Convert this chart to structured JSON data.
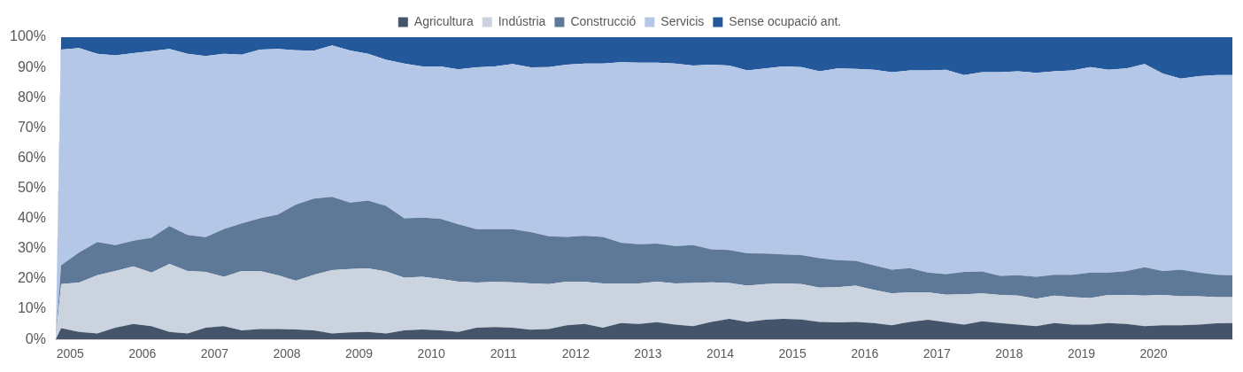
{
  "chart_data": {
    "type": "area",
    "stacked": true,
    "legend": "top",
    "x": [
      2005.3,
      2005.375,
      2005.625,
      2005.875,
      2006.125,
      2006.375,
      2006.625,
      2006.875,
      2007.125,
      2007.375,
      2007.625,
      2007.875,
      2008.125,
      2008.375,
      2008.625,
      2008.875,
      2009.125,
      2009.375,
      2009.625,
      2009.875,
      2010.125,
      2010.375,
      2010.625,
      2010.875,
      2011.125,
      2011.375,
      2011.625,
      2011.875,
      2012.125,
      2012.375,
      2012.625,
      2012.875,
      2013.125,
      2013.375,
      2013.625,
      2013.875,
      2014.125,
      2014.375,
      2014.625,
      2014.875,
      2015.125,
      2015.375,
      2015.625,
      2015.875,
      2016.125,
      2016.375,
      2016.625,
      2016.875,
      2017.125,
      2017.375,
      2017.625,
      2017.875,
      2018.125,
      2018.375,
      2018.625,
      2018.875,
      2019.125,
      2019.375,
      2019.625,
      2019.875,
      2020.125,
      2020.375,
      2020.625,
      2020.875,
      2021.125,
      2021.375,
      2021.59
    ],
    "xlim": [
      2005.3,
      2021.59
    ],
    "xticks": [
      {
        "value": 2005.5,
        "label": "2005"
      },
      {
        "value": 2006,
        "label": null
      },
      {
        "value": 2006.5,
        "label": "2006"
      },
      {
        "value": 2007,
        "label": null
      },
      {
        "value": 2007.5,
        "label": "2007"
      },
      {
        "value": 2008,
        "label": null
      },
      {
        "value": 2008.5,
        "label": "2008"
      },
      {
        "value": 2009,
        "label": null
      },
      {
        "value": 2009.5,
        "label": "2009"
      },
      {
        "value": 2010,
        "label": null
      },
      {
        "value": 2010.5,
        "label": "2010"
      },
      {
        "value": 2011,
        "label": null
      },
      {
        "value": 2011.5,
        "label": "2011"
      },
      {
        "value": 2012,
        "label": null
      },
      {
        "value": 2012.5,
        "label": "2012"
      },
      {
        "value": 2013,
        "label": null
      },
      {
        "value": 2013.5,
        "label": "2013"
      },
      {
        "value": 2014,
        "label": null
      },
      {
        "value": 2014.5,
        "label": "2014"
      },
      {
        "value": 2015,
        "label": null
      },
      {
        "value": 2015.5,
        "label": "2015"
      },
      {
        "value": 2016,
        "label": null
      },
      {
        "value": 2016.5,
        "label": "2016"
      },
      {
        "value": 2017,
        "label": null
      },
      {
        "value": 2017.5,
        "label": "2017"
      },
      {
        "value": 2018,
        "label": null
      },
      {
        "value": 2018.5,
        "label": "2018"
      },
      {
        "value": 2019,
        "label": null
      },
      {
        "value": 2019.5,
        "label": "2019"
      },
      {
        "value": 2020,
        "label": null
      },
      {
        "value": 2020.5,
        "label": "2020"
      },
      {
        "value": 2021,
        "label": null
      }
    ],
    "ylim": [
      0,
      100
    ],
    "yticks": [
      {
        "value": 0,
        "label": "0%"
      },
      {
        "value": 10,
        "label": "10%"
      },
      {
        "value": 20,
        "label": "20%"
      },
      {
        "value": 30,
        "label": "30%"
      },
      {
        "value": 40,
        "label": "40%"
      },
      {
        "value": 50,
        "label": "50%"
      },
      {
        "value": 60,
        "label": "60%"
      },
      {
        "value": 70,
        "label": "70%"
      },
      {
        "value": 80,
        "label": "80%"
      },
      {
        "value": 90,
        "label": "90%"
      },
      {
        "value": 100,
        "label": "100%"
      }
    ],
    "series": [
      {
        "name": "Agricultura",
        "color": "#44546a",
        "values": [
          0,
          3.7,
          2.5,
          2.0,
          3.9,
          5.1,
          4.4,
          2.5,
          2.0,
          3.9,
          4.4,
          3.0,
          3.4,
          3.4,
          3.3,
          3.0,
          2.0,
          2.3,
          2.5,
          2.0,
          3.0,
          3.3,
          3.0,
          2.5,
          3.9,
          4.1,
          3.9,
          3.2,
          3.4,
          4.7,
          5.1,
          3.9,
          5.4,
          5.1,
          5.7,
          4.9,
          4.4,
          5.8,
          6.8,
          5.8,
          6.5,
          6.8,
          6.6,
          5.8,
          5.6,
          5.8,
          5.4,
          4.7,
          5.8,
          6.5,
          5.7,
          4.9,
          6.0,
          5.4,
          4.9,
          4.4,
          5.4,
          4.9,
          4.9,
          5.4,
          5.1,
          4.4,
          4.7,
          4.7,
          4.9,
          5.3,
          5.4
        ]
      },
      {
        "name": "Indústria",
        "color": "#cbd3df",
        "values": [
          0,
          14.6,
          16.3,
          19.2,
          18.7,
          19.1,
          17.7,
          22.5,
          20.6,
          18.4,
          16.3,
          19.6,
          19.2,
          17.8,
          16.1,
          18.4,
          20.9,
          21.0,
          21.0,
          20.5,
          17.4,
          17.4,
          17.0,
          16.6,
          14.9,
          14.9,
          15.0,
          15.3,
          14.9,
          14.4,
          13.9,
          14.6,
          13.1,
          13.4,
          13.4,
          13.6,
          14.3,
          13.1,
          11.9,
          12.0,
          11.8,
          11.7,
          11.7,
          11.3,
          11.7,
          12.0,
          11.0,
          10.5,
          9.8,
          9.1,
          9.1,
          10.0,
          9.2,
          9.3,
          9.6,
          9.1,
          9.1,
          9.1,
          8.8,
          9.3,
          9.6,
          10.1,
          10.0,
          9.6,
          9.4,
          8.7,
          8.6
        ]
      },
      {
        "name": "Construcció",
        "color": "#5e7897",
        "values": [
          0,
          6.2,
          10.0,
          11.0,
          8.6,
          8.5,
          11.5,
          12.5,
          12.0,
          11.5,
          15.8,
          15.8,
          17.5,
          20.1,
          25.2,
          25.2,
          24.3,
          22.0,
          22.4,
          21.7,
          19.7,
          19.6,
          19.9,
          19.0,
          17.7,
          17.5,
          17.6,
          17.0,
          15.8,
          14.8,
          15.3,
          15.4,
          13.5,
          13.0,
          12.6,
          12.4,
          12.5,
          10.9,
          10.9,
          10.7,
          10.1,
          9.6,
          9.6,
          9.8,
          8.9,
          8.2,
          8.1,
          7.9,
          8.0,
          6.5,
          6.8,
          7.4,
          7.3,
          6.3,
          6.7,
          7.2,
          6.9,
          7.4,
          8.4,
          7.4,
          7.9,
          9.4,
          7.9,
          8.8,
          7.8,
          7.4,
          7.2
        ]
      },
      {
        "name": "Servicis",
        "color": "#b4c7e7",
        "values": [
          0,
          71.4,
          67.6,
          62.3,
          62.8,
          62.0,
          61.8,
          58.6,
          59.9,
          60.0,
          58.0,
          55.8,
          55.8,
          54.8,
          51.1,
          48.9,
          50.1,
          50.3,
          48.6,
          48.3,
          51.2,
          50.0,
          50.4,
          51.3,
          53.5,
          53.8,
          54.6,
          54.5,
          56.0,
          57.0,
          57.0,
          57.4,
          59.7,
          60.1,
          59.9,
          60.4,
          59.4,
          61.1,
          61.0,
          60.5,
          61.3,
          62.2,
          62.2,
          61.8,
          63.5,
          63.5,
          64.7,
          65.3,
          65.4,
          66.9,
          67.6,
          65.2,
          65.9,
          67.4,
          67.5,
          67.5,
          67.3,
          67.6,
          68.0,
          67.1,
          67.1,
          67.2,
          65.4,
          63.2,
          65.0,
          66.1,
          66.3
        ]
      },
      {
        "name": "Sense ocupació ant.",
        "color": "#23589a",
        "values": [
          0,
          4.1,
          3.6,
          5.5,
          6.0,
          5.3,
          4.6,
          3.9,
          5.5,
          6.2,
          5.5,
          5.8,
          4.1,
          3.9,
          4.3,
          4.5,
          2.7,
          4.4,
          5.5,
          7.5,
          8.7,
          9.7,
          9.7,
          10.6,
          10.0,
          9.7,
          8.9,
          10.0,
          9.9,
          9.1,
          8.7,
          8.7,
          8.3,
          8.4,
          8.4,
          8.7,
          9.4,
          9.1,
          9.4,
          11.0,
          10.3,
          9.7,
          9.9,
          11.3,
          10.3,
          10.5,
          10.8,
          11.6,
          11.0,
          11.0,
          10.8,
          12.5,
          11.6,
          11.6,
          11.3,
          11.8,
          11.3,
          11.0,
          9.9,
          10.8,
          10.3,
          8.9,
          12.0,
          13.7,
          12.9,
          12.5,
          12.5
        ]
      }
    ]
  }
}
